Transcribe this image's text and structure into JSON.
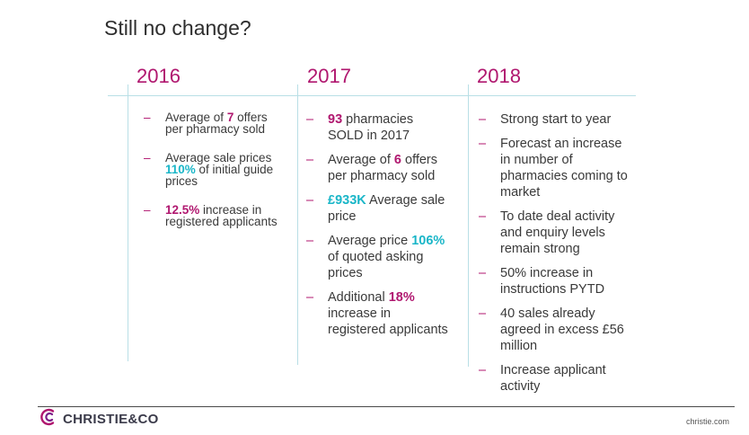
{
  "slide": {
    "title": "Still no change?",
    "columns": [
      {
        "year": "2016",
        "items": [
          [
            {
              "t": "Average of "
            },
            {
              "t": "7",
              "c": "mag"
            },
            {
              "t": " offers per pharmacy sold"
            }
          ],
          [
            {
              "t": "Average sale prices "
            },
            {
              "t": "110%",
              "c": "cyan"
            },
            {
              "t": " of initial guide prices"
            }
          ],
          [
            {
              "t": "12.5%",
              "c": "mag"
            },
            {
              "t": " increase in registered applicants"
            }
          ]
        ]
      },
      {
        "year": "2017",
        "items": [
          [
            {
              "t": "93",
              "c": "mag"
            },
            {
              "t": " pharmacies SOLD in 2017"
            }
          ],
          [
            {
              "t": "Average of "
            },
            {
              "t": "6",
              "c": "mag"
            },
            {
              "t": " offers per pharmacy sold"
            }
          ],
          [
            {
              "t": "£933K",
              "c": "cyan"
            },
            {
              "t": " Average sale price"
            }
          ],
          [
            {
              "t": "Average price "
            },
            {
              "t": "106%",
              "c": "cyan"
            },
            {
              "t": " of quoted asking prices"
            }
          ],
          [
            {
              "t": "Additional "
            },
            {
              "t": "18%",
              "c": "mag"
            },
            {
              "t": " increase in registered applicants"
            }
          ]
        ]
      },
      {
        "year": "2018",
        "items": [
          [
            {
              "t": "Strong start to year"
            }
          ],
          [
            {
              "t": "Forecast an increase in number of pharmacies coming to market"
            }
          ],
          [
            {
              "t": "To date deal activity and enquiry levels remain  strong"
            }
          ],
          [
            {
              "t": "50% increase in instructions PYTD"
            }
          ],
          [
            {
              "t": "40 sales already agreed in excess £56 million"
            }
          ],
          [
            {
              "t": "Increase applicant activity"
            }
          ]
        ]
      }
    ],
    "bullet": "–"
  },
  "footer": {
    "logo_text": "CHRISTIE&CO",
    "site": "christie.com"
  },
  "colors": {
    "accent_magenta": "#b0176f",
    "accent_cyan": "#1ab6c8",
    "rule": "#b9dfe6"
  },
  "icons": {
    "logo": "christie-swirl-logo-icon"
  }
}
